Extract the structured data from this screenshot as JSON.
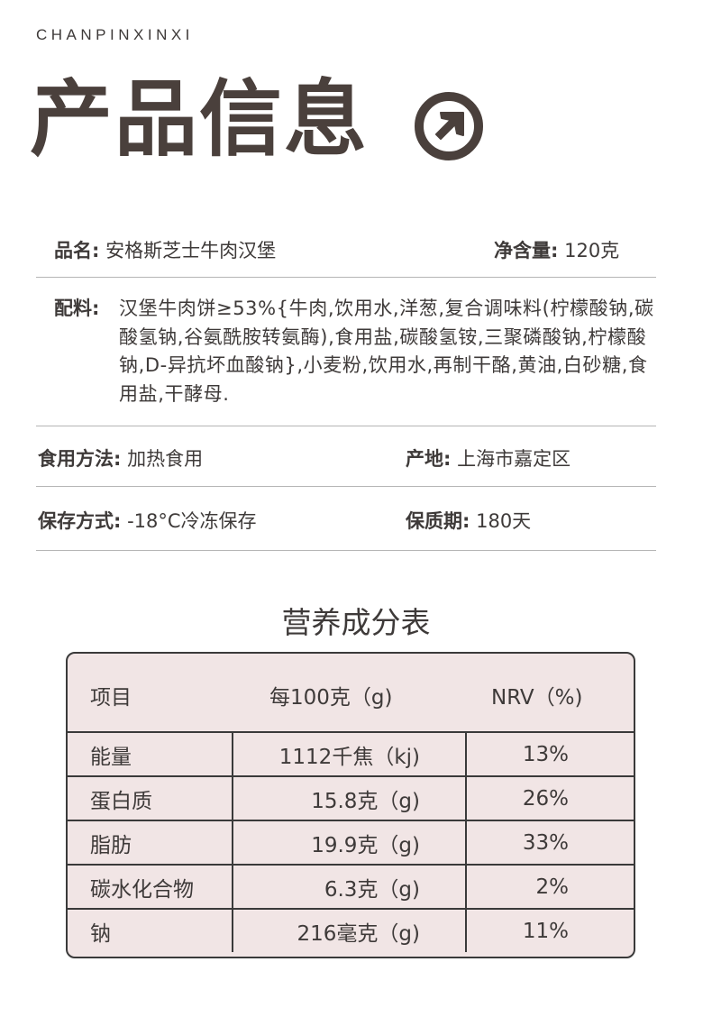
{
  "header": {
    "eyebrow": "CHANPINXINXI",
    "title": "产品信息",
    "icon": "arrow-up-right-circle-icon",
    "color": "#4a403c"
  },
  "info": {
    "name_label": "品名:",
    "name_value": "安格斯芝士牛肉汉堡",
    "net_label": "净含量:",
    "net_value": "120克",
    "ingredients_label": "配料:",
    "ingredients_value": "汉堡牛肉饼≥53%{牛肉,饮用水,洋葱,复合调味料(柠檬酸钠,碳酸氢钠,谷氨酰胺转氨酶),食用盐,碳酸氢铵,三聚磷酸钠,柠檬酸钠,D-异抗坏血酸钠},小麦粉,饮用水,再制干酪,黄油,白砂糖,食用盐,干酵母.",
    "usage_label": "食用方法:",
    "usage_value": "加热食用",
    "origin_label": "产地:",
    "origin_value": "上海市嘉定区",
    "storage_label": "保存方式:",
    "storage_value": "-18°C冷冻保存",
    "shelf_label": "保质期:",
    "shelf_value": "180天"
  },
  "nutrition": {
    "title": "营养成分表",
    "headers": [
      "项目",
      "每100克（g)",
      "NRV（%)"
    ],
    "table_bg": "#f1e5e5",
    "rows": [
      [
        "能量",
        "1112千焦（kj)",
        "13%"
      ],
      [
        "蛋白质",
        "15.8克（g)",
        "26%"
      ],
      [
        "脂肪",
        "19.9克（g)",
        "33%"
      ],
      [
        "碳水化合物",
        "6.3克（g)",
        "2%"
      ],
      [
        "钠",
        "216毫克（g)",
        "11%"
      ]
    ]
  }
}
